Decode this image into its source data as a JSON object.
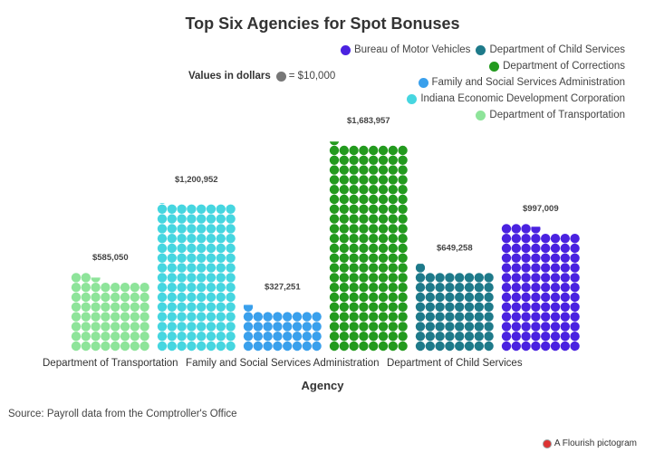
{
  "chart_data": {
    "type": "pictogram",
    "title": "Top Six Agencies for Spot Bonuses",
    "xlabel": "Agency",
    "unit_label": "Values in dollars",
    "unit_value": "= $10,000",
    "dot_value": 10000,
    "dots_per_row": 8,
    "legend_position": "top-right",
    "legend": [
      {
        "name": "Bureau of Motor Vehicles",
        "color": "#4a22e0"
      },
      {
        "name": "Department of Child Services",
        "color": "#1e7a8a"
      },
      {
        "name": "Department of Corrections",
        "color": "#239a1e"
      },
      {
        "name": "Family and Social Services Administration",
        "color": "#3aa0ec"
      },
      {
        "name": "Indiana Economic Development Corporation",
        "color": "#46d6e0"
      },
      {
        "name": "Department of Transportation",
        "color": "#8ee49a"
      }
    ],
    "categories": [
      "Department of Transportation",
      "Indiana Economic Development Corporation",
      "Family and Social Services Administration",
      "Department of Corrections",
      "Department of Child Services",
      "Bureau of Motor Vehicles"
    ],
    "tick_shown": [
      true,
      false,
      true,
      false,
      true,
      false
    ],
    "values": [
      585050,
      1200952,
      327251,
      1683957,
      649258,
      997009
    ],
    "value_labels": [
      "$585,050",
      "$1,200,952",
      "$327,251",
      "$1,683,957",
      "$649,258",
      "$997,009"
    ],
    "colors": [
      "#8ee49a",
      "#46d6e0",
      "#3aa0ec",
      "#239a1e",
      "#1e7a8a",
      "#4a22e0"
    ]
  },
  "source": "Source: Payroll data from the Comptroller's Office",
  "credit": "A Flourish pictogram"
}
